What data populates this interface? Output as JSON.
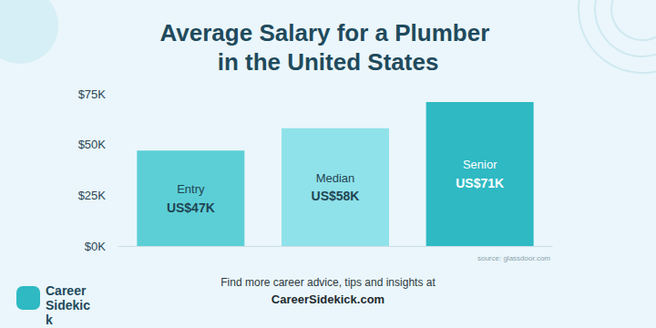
{
  "chart_data": {
    "type": "bar",
    "title": "Average Salary for a Plumber in the United States",
    "categories": [
      "Entry",
      "Median",
      "Senior"
    ],
    "values": [
      47,
      58,
      71
    ],
    "value_labels": [
      "US$47K",
      "US$58K",
      "US$71K"
    ],
    "colors": [
      "#5ccfd6",
      "#8fe2e9",
      "#2eb9c3"
    ],
    "ylim": [
      0,
      75
    ],
    "yticks": [
      {
        "value": 0,
        "label": "$0K"
      },
      {
        "value": 25,
        "label": "$25K"
      },
      {
        "value": 50,
        "label": "$50K"
      },
      {
        "value": 75,
        "label": "$75K"
      }
    ],
    "grid": false,
    "data_labels": true,
    "tick_labels": "y",
    "annotations": [
      "source: glassdoor.com",
      "Find more career advice, tips and insights at",
      "CareerSidekick.com",
      "Career Sidekick"
    ]
  }
}
